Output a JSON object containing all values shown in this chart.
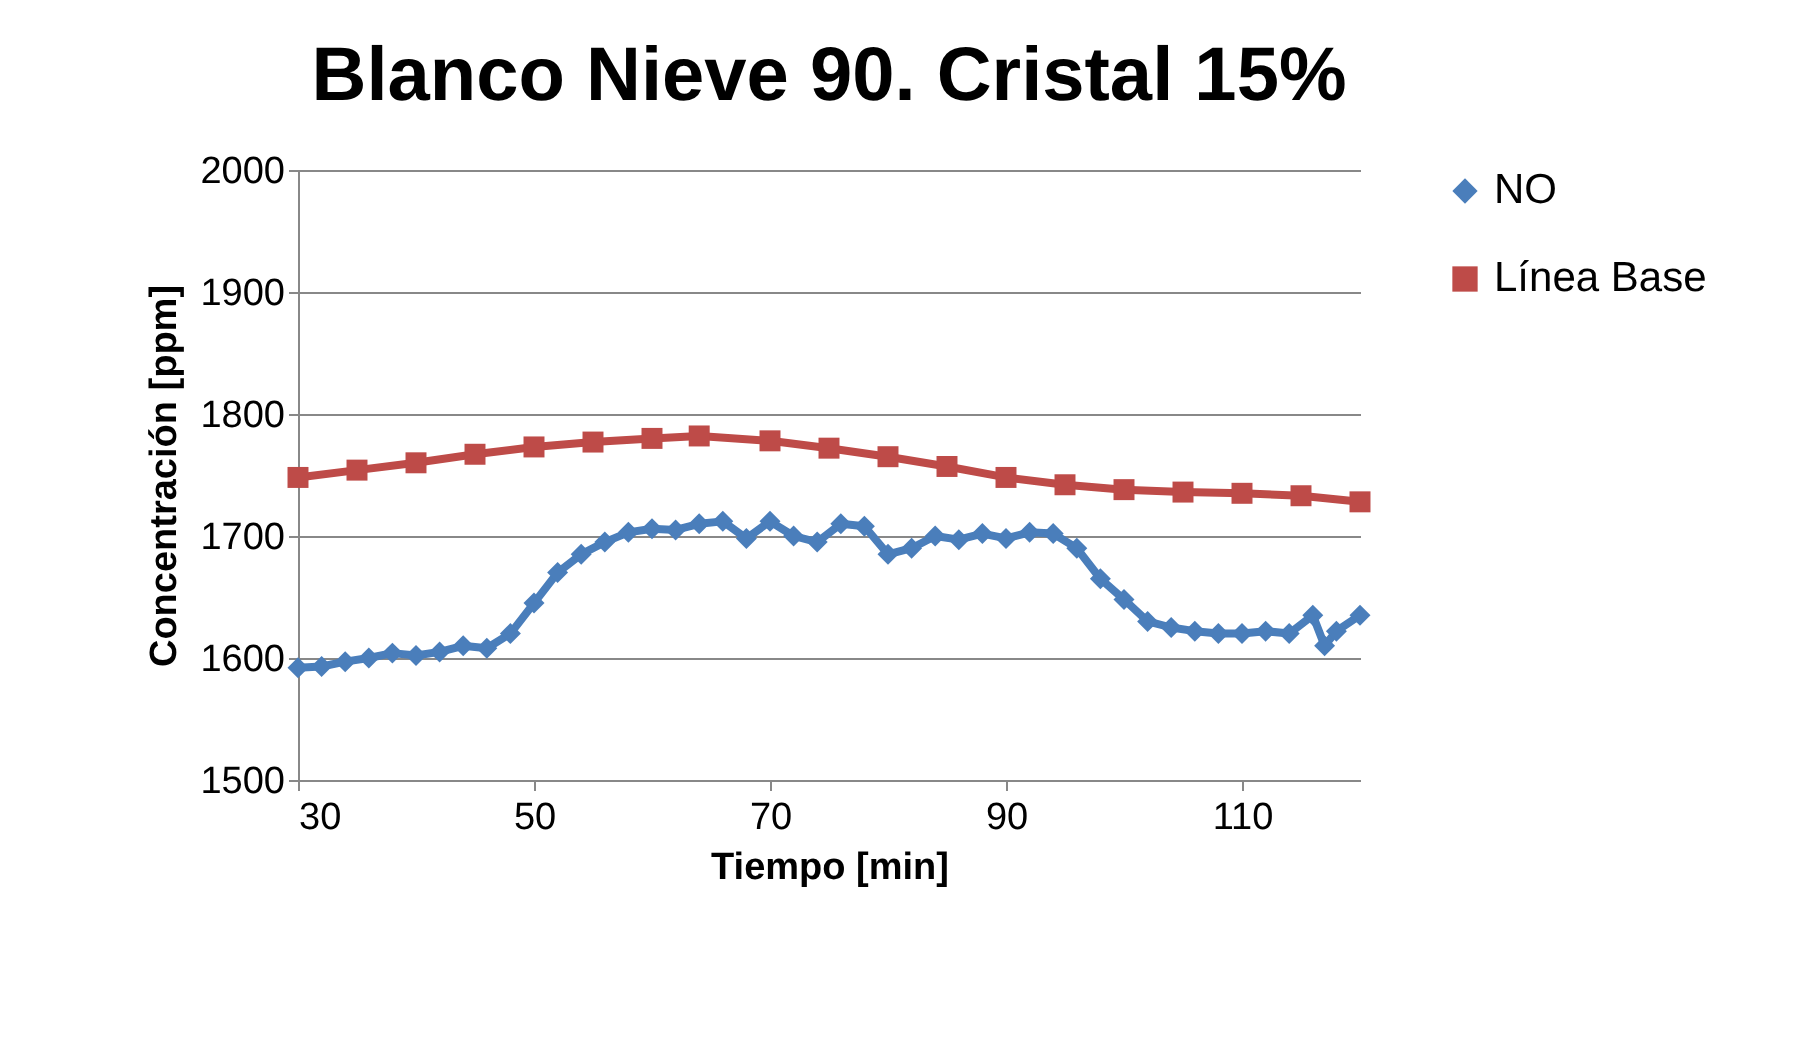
{
  "chart_data": {
    "type": "line",
    "title": "Blanco Nieve 90. Cristal 15%",
    "xlabel": "Tiempo [min]",
    "ylabel": "Concentración [ppm]",
    "xlim": [
      30,
      120
    ],
    "xticks": [
      30,
      50,
      70,
      90,
      110
    ],
    "ylim": [
      1500,
      2000
    ],
    "yticks": [
      1500,
      1600,
      1700,
      1800,
      1900,
      2000
    ],
    "grid": "y",
    "legend": "right",
    "series": [
      {
        "name": "NO",
        "color": "#4a7ebb",
        "marker": "diamond",
        "x": [
          30,
          32,
          34,
          36,
          38,
          40,
          42,
          44,
          46,
          48,
          50,
          52,
          54,
          56,
          58,
          60,
          62,
          64,
          66,
          68,
          70,
          72,
          74,
          76,
          78,
          80,
          82,
          84,
          86,
          88,
          90,
          92,
          94,
          96,
          98,
          100,
          102,
          104,
          106,
          108,
          110,
          112,
          114,
          116,
          117,
          118,
          120
        ],
        "values": [
          1592,
          1593,
          1597,
          1600,
          1604,
          1602,
          1605,
          1610,
          1608,
          1620,
          1645,
          1670,
          1685,
          1695,
          1703,
          1706,
          1705,
          1710,
          1712,
          1698,
          1712,
          1700,
          1695,
          1710,
          1708,
          1685,
          1690,
          1700,
          1697,
          1702,
          1698,
          1703,
          1702,
          1690,
          1665,
          1648,
          1630,
          1625,
          1622,
          1620,
          1620,
          1622,
          1620,
          1635,
          1610,
          1622,
          1635
        ]
      },
      {
        "name": "Línea Base",
        "color": "#be4b48",
        "marker": "square",
        "x": [
          30,
          35,
          40,
          45,
          50,
          55,
          60,
          64,
          70,
          75,
          80,
          85,
          90,
          95,
          100,
          105,
          110,
          115,
          120
        ],
        "values": [
          1748,
          1754,
          1760,
          1767,
          1773,
          1777,
          1780,
          1782,
          1778,
          1772,
          1765,
          1757,
          1748,
          1742,
          1738,
          1736,
          1735,
          1733,
          1728
        ]
      }
    ]
  }
}
